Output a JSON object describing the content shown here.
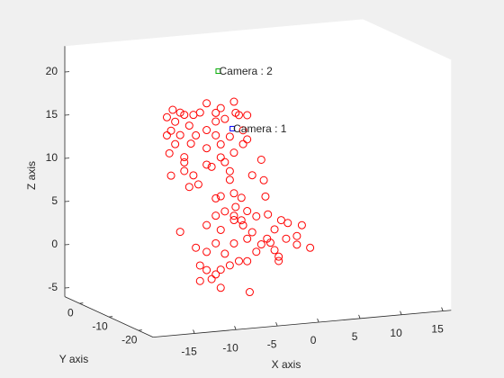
{
  "chart_data": {
    "type": "scatter3d",
    "xlabel": "X axis",
    "ylabel": "Y axis",
    "zlabel": "Z axis",
    "xlim": [
      -20,
      16
    ],
    "ylim": [
      -25,
      5
    ],
    "zlim": [
      -6,
      23
    ],
    "xticks": [
      -15,
      -10,
      -5,
      0,
      5,
      10,
      15
    ],
    "yticks": [
      -20,
      -10,
      0
    ],
    "zticks": [
      -5,
      0,
      5,
      10,
      15,
      20
    ],
    "color": "#ff0000",
    "x": [
      -12.3,
      -13.0,
      -11.4,
      -9.8,
      -8.2,
      -6.5,
      -4.9,
      -4.3,
      -3.3,
      -12.5,
      -12.0,
      -12.7,
      -11.4,
      -10.3,
      -10.1,
      -10.9,
      -12.5,
      -10.9,
      -9.8,
      -10.3,
      -9.2,
      -7.1,
      -6.0,
      -7.1,
      -5.4,
      -8.2,
      -6.5,
      -7.6,
      -6.0,
      -4.9,
      -8.2,
      -5.4,
      -3.8,
      -3.3,
      -8.2,
      -6.5,
      -9.5,
      -13.0,
      -12.0,
      -10.9,
      -9.0,
      -7.1,
      -1.6,
      -2.7,
      -1.3,
      -5.4,
      -4.9,
      -6.5,
      -1.1,
      -4.0,
      -3.8,
      -4.7,
      -7.1,
      -6.0,
      -4.7,
      -3.3,
      -2.2,
      -0.8,
      -4.9,
      -8.2,
      -6.5,
      -11.4,
      -3.8,
      0.8,
      1.6,
      0.0,
      3.3,
      2.7,
      4.3,
      1.4,
      -9.5,
      -7.1,
      -4.9,
      -3.3,
      -1.6,
      -0.5,
      -2.2,
      0.0,
      0.5,
      -8.2,
      -6.0,
      -4.3,
      -3.3,
      -6.5,
      -8.2,
      -7.6,
      -9.0,
      -6.5,
      -7.1,
      -5.4,
      0.5,
      -3.0,
      -0.9,
      -4.9,
      -2.7,
      -7.1,
      -4.0,
      -9.0,
      2.7,
      -10.9
    ],
    "y": [
      -10,
      -10,
      -10,
      -10,
      -10,
      -10,
      -10,
      -10,
      -10,
      -10,
      -10,
      -10,
      -10,
      -10,
      -10,
      -10,
      -10,
      -10,
      -10,
      -10,
      -10,
      -10,
      -10,
      -10,
      -10,
      -10,
      -10,
      -10,
      -10,
      -10,
      -10,
      -10,
      -10,
      -10,
      -10,
      -10,
      -10,
      -10,
      -10,
      -10,
      -10,
      -10,
      -10,
      -10,
      -10,
      -10,
      -10,
      -10,
      -10,
      -10,
      -10,
      -10,
      -10,
      -10,
      -10,
      -10,
      -10,
      -10,
      -10,
      -10,
      -10,
      -10,
      -10,
      -10,
      -10,
      -10,
      -10,
      -10,
      -10,
      -10,
      -10,
      -10,
      -10,
      -10,
      -10,
      -10,
      -10,
      -10,
      -10,
      -10,
      -10,
      -10,
      -10,
      -10,
      -10,
      -10,
      -10,
      -10,
      -10,
      -10,
      -10,
      -10,
      -10,
      -10,
      -10,
      -10,
      -10,
      -10,
      -10,
      -10
    ],
    "z": [
      17.3,
      16.5,
      16.9,
      16.5,
      17.7,
      17.0,
      17.6,
      16.0,
      15.9,
      14.9,
      13.3,
      12.3,
      14.3,
      15.3,
      13.2,
      11.7,
      9.7,
      10.1,
      9.5,
      8.2,
      8.4,
      15.5,
      15.7,
      13.9,
      13.6,
      12.5,
      11.3,
      10.3,
      10.7,
      11.7,
      10.6,
      9.6,
      14.2,
      13.1,
      14.6,
      12.8,
      14.1,
      14.4,
      15.9,
      16.6,
      16.7,
      16.5,
      10.6,
      8.9,
      8.2,
      8.6,
      7.0,
      6.8,
      6.3,
      6.4,
      12.6,
      16.3,
      4.6,
      5.0,
      5.4,
      4.8,
      4.1,
      4.2,
      3.9,
      3.6,
      2.9,
      3.1,
      3.2,
      3.4,
      3.0,
      2.4,
      2.6,
      1.4,
      -0.1,
      1.2,
      1.1,
      1.4,
      1.2,
      1.6,
      0.8,
      0.9,
      0.0,
      0.0,
      -0.8,
      0.5,
      0.1,
      -0.9,
      -1.0,
      -1.7,
      -1.6,
      -2.7,
      -2.8,
      -3.8,
      -2.2,
      -1.3,
      -1.3,
      -4.6,
      1.4,
      4.4,
      2.3,
      6.6,
      3.8,
      -1.0,
      0.4,
      11.1
    ],
    "cameras": [
      {
        "label": "Camera : 1",
        "x": -5.1,
        "y": -10,
        "z": 14.5,
        "color": "#0000ff"
      },
      {
        "label": "Camera : 2",
        "x": -6.8,
        "y": -10,
        "z": 21.3,
        "color": "#00aa00"
      }
    ]
  }
}
